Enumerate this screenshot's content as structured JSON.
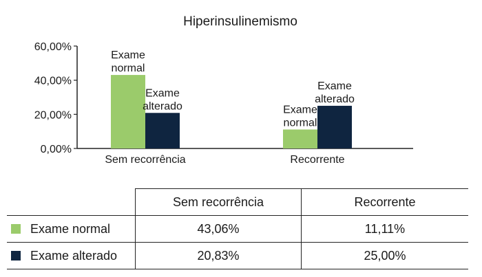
{
  "chart_data": {
    "type": "bar",
    "title": "Hiperinsulinemismo",
    "categories": [
      "Sem recorrência",
      "Recorrente"
    ],
    "series": [
      {
        "name": "Exame normal",
        "label_lines": [
          "Exame",
          "normal"
        ],
        "color": "#9bcb6b",
        "values": [
          43.06,
          11.11
        ]
      },
      {
        "name": "Exame alterado",
        "label_lines": [
          "Exame",
          "alterado"
        ],
        "color": "#0f2540",
        "values": [
          20.83,
          25.0
        ]
      }
    ],
    "ylim": [
      0,
      60
    ],
    "yticks": [
      "0,00%",
      "20,00%",
      "40,00%",
      "60,00%"
    ],
    "ytick_values": [
      0,
      20,
      40,
      60
    ],
    "grid": false
  },
  "table": {
    "headers": [
      "",
      "Sem recorrência",
      "Recorrente"
    ],
    "rows": [
      {
        "label": "Exame normal",
        "color": "#9bcb6b",
        "cells": [
          "43,06%",
          "11,11%"
        ]
      },
      {
        "label": "Exame alterado",
        "color": "#0f2540",
        "cells": [
          "20,83%",
          "25,00%"
        ]
      }
    ]
  }
}
